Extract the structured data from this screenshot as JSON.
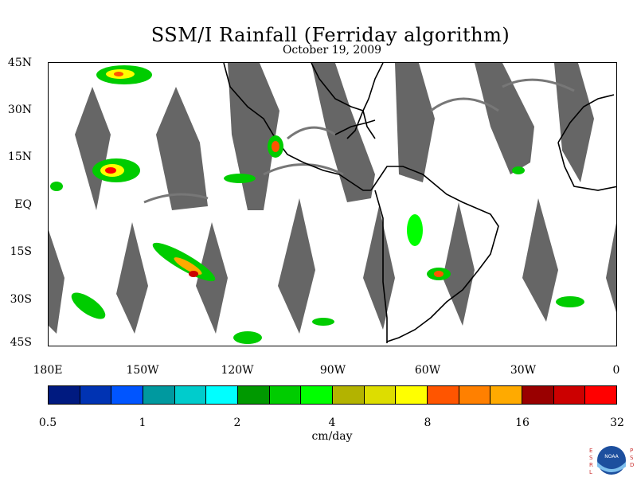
{
  "title": "SSM/I Rainfall (Ferriday algorithm)",
  "date": "October 19, 2009",
  "lat_labels": [
    "45N",
    "30N",
    "15N",
    "EQ",
    "15S",
    "30S",
    "45S"
  ],
  "lon_labels": [
    "180E",
    "150W",
    "120W",
    "90W",
    "60W",
    "30W",
    "0"
  ],
  "colorbar": {
    "colors": [
      "#001a80",
      "#0033b3",
      "#0055ff",
      "#00999f",
      "#00cccc",
      "#00ffff",
      "#009900",
      "#00cc00",
      "#00ff00",
      "#b3b300",
      "#dddd00",
      "#ffff00",
      "#ff5500",
      "#ff8000",
      "#ffaa00",
      "#990000",
      "#cc0000",
      "#ff0000"
    ],
    "tick_labels": [
      "0.5",
      "1",
      "2",
      "4",
      "8",
      "16",
      "32"
    ],
    "units": "cm/day"
  },
  "logo": {
    "left_letters": "ESRL",
    "right_letters": "PSD",
    "center_text": "NOAA"
  }
}
